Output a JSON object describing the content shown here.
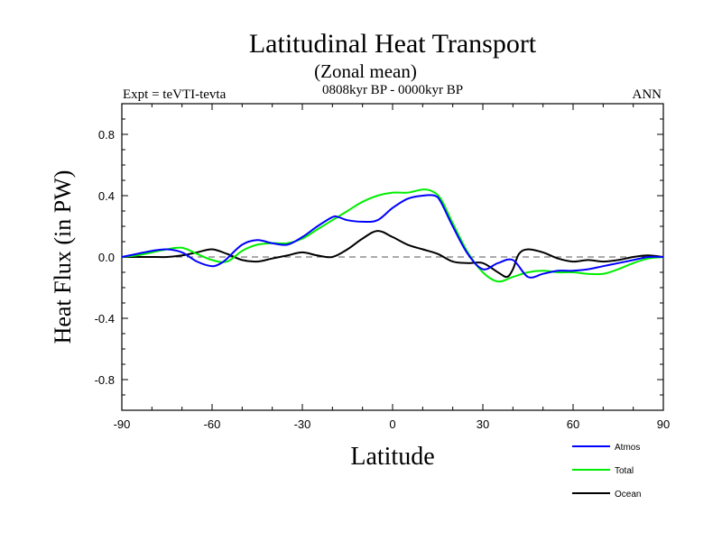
{
  "chart_data": {
    "type": "line",
    "title": "Latitudinal Heat Transport",
    "subtitle": "(Zonal mean)",
    "period": "0808kyr BP - 0000kyr BP",
    "left_label": "Expt = teVTI-tevta",
    "right_label": "ANN",
    "xlabel": "Latitude",
    "ylabel": "Heat Flux (in PW)",
    "xlim": [
      -90,
      90
    ],
    "ylim": [
      -1.0,
      1.0
    ],
    "xticks": [
      -90,
      -60,
      -30,
      0,
      30,
      60,
      90
    ],
    "xtick_labels": [
      "-90",
      "-60",
      "-30",
      "0",
      "30",
      "60",
      "90"
    ],
    "yticks": [
      -0.8,
      -0.4,
      0.0,
      0.4,
      0.8
    ],
    "ytick_labels": [
      "-0.8",
      "-0.4",
      "0.0",
      "0.4",
      "0.8"
    ],
    "zero_line": true,
    "series": [
      {
        "name": "Atmos",
        "color": "#0000ff",
        "x": [
          -90,
          -85,
          -80,
          -75,
          -70,
          -65,
          -60,
          -57,
          -55,
          -50,
          -45,
          -40,
          -35,
          -30,
          -25,
          -20,
          -18,
          -15,
          -10,
          -5,
          0,
          5,
          10,
          14,
          16,
          20,
          25,
          30,
          35,
          40,
          45,
          50,
          55,
          60,
          65,
          70,
          75,
          80,
          85,
          90
        ],
        "y": [
          0.0,
          0.02,
          0.04,
          0.05,
          0.03,
          -0.03,
          -0.06,
          -0.04,
          -0.01,
          0.08,
          0.11,
          0.09,
          0.08,
          0.13,
          0.2,
          0.26,
          0.26,
          0.24,
          0.23,
          0.24,
          0.32,
          0.38,
          0.4,
          0.4,
          0.36,
          0.2,
          0.02,
          -0.08,
          -0.04,
          -0.02,
          -0.13,
          -0.11,
          -0.09,
          -0.09,
          -0.08,
          -0.06,
          -0.04,
          -0.02,
          0.0,
          0.0
        ]
      },
      {
        "name": "Total",
        "color": "#00ee00",
        "x": [
          -90,
          -85,
          -80,
          -75,
          -70,
          -65,
          -60,
          -55,
          -50,
          -45,
          -40,
          -35,
          -30,
          -25,
          -20,
          -15,
          -10,
          -5,
          0,
          5,
          10,
          13,
          16,
          20,
          25,
          30,
          35,
          40,
          45,
          50,
          55,
          60,
          65,
          70,
          75,
          80,
          85,
          90
        ],
        "y": [
          0.0,
          0.01,
          0.03,
          0.05,
          0.06,
          0.02,
          -0.02,
          -0.03,
          0.04,
          0.08,
          0.09,
          0.09,
          0.12,
          0.18,
          0.24,
          0.3,
          0.36,
          0.4,
          0.42,
          0.42,
          0.44,
          0.43,
          0.38,
          0.22,
          0.03,
          -0.1,
          -0.16,
          -0.13,
          -0.1,
          -0.09,
          -0.1,
          -0.1,
          -0.11,
          -0.11,
          -0.08,
          -0.04,
          -0.01,
          0.0
        ]
      },
      {
        "name": "Ocean",
        "color": "#000000",
        "x": [
          -90,
          -85,
          -80,
          -75,
          -70,
          -65,
          -60,
          -55,
          -50,
          -45,
          -40,
          -35,
          -30,
          -25,
          -20,
          -15,
          -10,
          -5,
          0,
          5,
          10,
          15,
          20,
          25,
          30,
          35,
          38,
          40,
          42,
          45,
          50,
          55,
          60,
          65,
          70,
          75,
          80,
          85,
          90
        ],
        "y": [
          0.0,
          0.0,
          0.0,
          0.0,
          0.01,
          0.03,
          0.05,
          0.02,
          -0.02,
          -0.03,
          -0.01,
          0.01,
          0.03,
          0.01,
          0.0,
          0.05,
          0.12,
          0.17,
          0.13,
          0.08,
          0.05,
          0.02,
          -0.03,
          -0.04,
          -0.04,
          -0.1,
          -0.13,
          -0.08,
          0.02,
          0.05,
          0.03,
          -0.01,
          -0.03,
          -0.02,
          -0.03,
          -0.02,
          0.0,
          0.01,
          0.0
        ]
      }
    ]
  }
}
